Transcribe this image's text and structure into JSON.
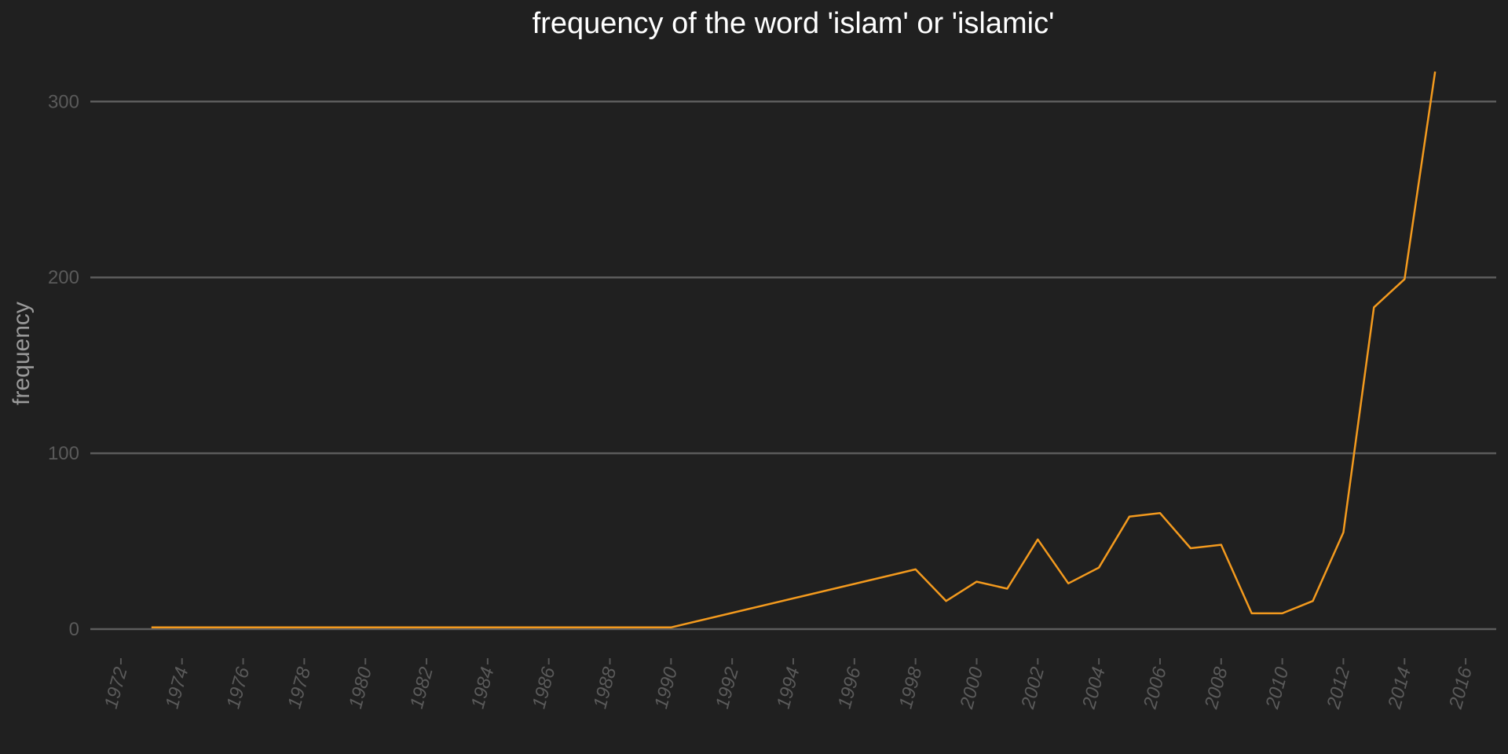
{
  "chart_data": {
    "type": "line",
    "title": "frequency of the word 'islam' or 'islamic'",
    "xlabel": "",
    "ylabel": "frequency",
    "xlim": [
      1971,
      2017
    ],
    "ylim": [
      -4,
      322
    ],
    "xticks": [
      1972,
      1974,
      1976,
      1978,
      1980,
      1982,
      1984,
      1986,
      1988,
      1990,
      1992,
      1994,
      1996,
      1998,
      2000,
      2002,
      2004,
      2006,
      2008,
      2010,
      2012,
      2014,
      2016
    ],
    "yticks": [
      0,
      100,
      200,
      300
    ],
    "grid": true,
    "line_color": "#f39a1e",
    "background": "#202020",
    "series": [
      {
        "x": [
          1973,
          1974,
          1975,
          1976,
          1977,
          1978,
          1979,
          1980,
          1981,
          1982,
          1983,
          1984,
          1985,
          1986,
          1987,
          1988,
          1989,
          1990,
          1998,
          1999,
          2000,
          2001,
          2002,
          2003,
          2004,
          2005,
          2006,
          2007,
          2008,
          2009,
          2010,
          2011,
          2012,
          2013,
          2014,
          2015
        ],
        "values": [
          1,
          1,
          1,
          1,
          1,
          1,
          1,
          1,
          1,
          1,
          1,
          1,
          1,
          1,
          1,
          1,
          1,
          1,
          34,
          16,
          27,
          23,
          51,
          26,
          35,
          64,
          66,
          46,
          48,
          9,
          9,
          16,
          55,
          183,
          199,
          317
        ]
      }
    ]
  }
}
